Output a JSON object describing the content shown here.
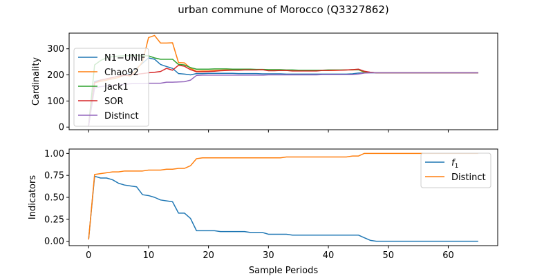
{
  "chart_data": {
    "title": "urban commune of Morocco (Q3327862)",
    "xlabel": "Sample Periods",
    "xlim": [
      -3.25,
      68.25
    ],
    "xticks": [
      0,
      10,
      20,
      30,
      40,
      50,
      60
    ],
    "panels": [
      {
        "type": "line",
        "ylabel": "Cardinality",
        "ylim": [
          -10,
          360
        ],
        "yticks": [
          0,
          100,
          200,
          300
        ],
        "legend_position": "center-left",
        "series": [
          {
            "name": "N1−UNIF",
            "color": "#1f77b4",
            "x": [
              0,
              1,
              2,
              3,
              4,
              5,
              6,
              7,
              8,
              9,
              10,
              11,
              12,
              13,
              14,
              15,
              16,
              17,
              18,
              19,
              20,
              21,
              22,
              23,
              24,
              25,
              26,
              27,
              28,
              29,
              30,
              31,
              32,
              33,
              34,
              35,
              36,
              37,
              38,
              39,
              40,
              41,
              42,
              43,
              44,
              45,
              46,
              47,
              48,
              49,
              50,
              51,
              52,
              53,
              54,
              55,
              56,
              57,
              58,
              59,
              60,
              61,
              62,
              63,
              64,
              65
            ],
            "y": [
              5,
              175,
              180,
              185,
              190,
              195,
              200,
              210,
              225,
              245,
              265,
              260,
              240,
              232,
              225,
              205,
              203,
              200,
              205,
              205,
              206,
              206,
              206,
              206,
              206,
              205,
              205,
              205,
              205,
              204,
              204,
              204,
              204,
              203,
              203,
              203,
              203,
              203,
              203,
              203,
              203,
              203,
              203,
              203,
              204,
              207,
              208,
              208,
              208,
              208,
              208,
              208,
              208,
              208,
              208,
              208,
              208,
              208,
              208,
              208,
              208,
              208,
              208,
              208,
              208,
              208
            ]
          },
          {
            "name": "Chao92",
            "color": "#ff7f0e",
            "x": [
              0,
              1,
              2,
              3,
              4,
              5,
              6,
              7,
              8,
              9,
              10,
              11,
              12,
              13,
              14,
              15,
              16,
              17,
              18,
              19,
              20,
              21,
              22,
              23,
              24,
              25,
              26,
              27,
              28,
              29,
              30,
              31,
              32,
              33,
              34,
              35,
              36,
              37,
              38,
              39,
              40,
              41,
              42,
              43,
              44,
              45,
              46,
              47,
              48,
              49,
              50,
              51,
              52,
              53,
              54,
              55,
              56,
              57,
              58,
              59,
              60,
              61,
              62,
              63,
              64,
              65
            ],
            "y": [
              5,
              170,
              175,
              180,
              185,
              190,
              200,
              195,
              220,
              250,
              343,
              351,
              322,
              322,
              323,
              247,
              246,
              225,
              214,
              215,
              215,
              217,
              218,
              219,
              219,
              220,
              220,
              220,
              220,
              220,
              218,
              217,
              217,
              217,
              216,
              216,
              216,
              216,
              216,
              217,
              217,
              217,
              218,
              219,
              219,
              220,
              210,
              210,
              208,
              208,
              208,
              208,
              208,
              208,
              208,
              208,
              208,
              208,
              208,
              208,
              208,
              208,
              208,
              208,
              208,
              208
            ]
          },
          {
            "name": "Jack1",
            "color": "#2ca02c",
            "x": [
              0,
              1,
              2,
              3,
              4,
              5,
              6,
              7,
              8,
              9,
              10,
              11,
              12,
              13,
              14,
              15,
              16,
              17,
              18,
              19,
              20,
              21,
              22,
              23,
              24,
              25,
              26,
              27,
              28,
              29,
              30,
              31,
              32,
              33,
              34,
              35,
              36,
              37,
              38,
              39,
              40,
              41,
              42,
              43,
              44,
              45,
              46,
              47,
              48,
              49,
              50,
              51,
              52,
              53,
              54,
              55,
              56,
              57,
              58,
              59,
              60,
              61,
              62,
              63,
              64,
              65
            ],
            "y": [
              5,
              238,
              255,
              265,
              270,
              272,
              273,
              274,
              274,
              273,
              273,
              265,
              260,
              260,
              260,
              240,
              238,
              228,
              222,
              222,
              222,
              223,
              223,
              223,
              222,
              222,
              222,
              222,
              221,
              221,
              220,
              220,
              220,
              219,
              219,
              218,
              218,
              218,
              218,
              218,
              219,
              219,
              219,
              219,
              220,
              220,
              212,
              210,
              208,
              208,
              208,
              208,
              208,
              208,
              208,
              208,
              208,
              208,
              208,
              208,
              208,
              208,
              208,
              208,
              208,
              208
            ]
          },
          {
            "name": "SOR",
            "color": "#d62728",
            "x": [
              0,
              1,
              2,
              3,
              4,
              5,
              6,
              7,
              8,
              9,
              10,
              11,
              12,
              13,
              14,
              15,
              16,
              17,
              18,
              19,
              20,
              21,
              22,
              23,
              24,
              25,
              26,
              27,
              28,
              29,
              30,
              31,
              32,
              33,
              34,
              35,
              36,
              37,
              38,
              39,
              40,
              41,
              42,
              43,
              44,
              45,
              46,
              47,
              48,
              49,
              50,
              51,
              52,
              53,
              54,
              55,
              56,
              57,
              58,
              59,
              60,
              61,
              62,
              63,
              64,
              65
            ],
            "y": [
              5,
              170,
              180,
              185,
              190,
              195,
              198,
              200,
              202,
              205,
              208,
              210,
              213,
              225,
              218,
              237,
              233,
              220,
              212,
              212,
              213,
              214,
              216,
              217,
              218,
              218,
              219,
              219,
              219,
              220,
              216,
              216,
              217,
              217,
              215,
              215,
              215,
              215,
              215,
              217,
              217,
              218,
              218,
              219,
              220,
              222,
              214,
              210,
              208,
              208,
              208,
              208,
              208,
              208,
              208,
              208,
              208,
              208,
              208,
              208,
              208,
              208,
              208,
              208,
              208,
              208
            ]
          },
          {
            "name": "Distinct",
            "color": "#9467bd",
            "x": [
              0,
              1,
              2,
              3,
              4,
              5,
              6,
              7,
              8,
              9,
              10,
              11,
              12,
              13,
              14,
              15,
              16,
              17,
              18,
              19,
              20,
              21,
              22,
              23,
              24,
              25,
              26,
              27,
              28,
              29,
              30,
              31,
              32,
              33,
              34,
              35,
              36,
              37,
              38,
              39,
              40,
              41,
              42,
              43,
              44,
              45,
              46,
              47,
              48,
              49,
              50,
              51,
              52,
              53,
              54,
              55,
              56,
              57,
              58,
              59,
              60,
              61,
              62,
              63,
              64,
              65
            ],
            "y": [
              5,
              150,
              155,
              158,
              160,
              162,
              164,
              166,
              167,
              167,
              168,
              168,
              168,
              172,
              172,
              173,
              174,
              180,
              198,
              199,
              199,
              199,
              199,
              199,
              199,
              199,
              199,
              199,
              199,
              199,
              200,
              200,
              200,
              200,
              200,
              200,
              200,
              200,
              200,
              201,
              201,
              201,
              201,
              201,
              201,
              203,
              207,
              208,
              208,
              208,
              208,
              208,
              208,
              208,
              208,
              208,
              208,
              208,
              208,
              208,
              208,
              208,
              208,
              208,
              208,
              208
            ]
          }
        ]
      },
      {
        "type": "line",
        "ylabel": "Indicators",
        "ylim": [
          -0.05,
          1.05
        ],
        "yticks": [
          0.0,
          0.25,
          0.5,
          0.75,
          1.0
        ],
        "ytick_labels": [
          "0.00",
          "0.25",
          "0.50",
          "0.75",
          "1.00"
        ],
        "legend_position": "upper-right",
        "series": [
          {
            "name": "f1",
            "color": "#1f77b4",
            "x": [
              0,
              1,
              2,
              3,
              4,
              5,
              6,
              7,
              8,
              9,
              10,
              11,
              12,
              13,
              14,
              15,
              16,
              17,
              18,
              19,
              20,
              21,
              22,
              23,
              24,
              25,
              26,
              27,
              28,
              29,
              30,
              31,
              32,
              33,
              34,
              35,
              36,
              37,
              38,
              39,
              40,
              41,
              42,
              43,
              44,
              45,
              46,
              47,
              48,
              49,
              50,
              51,
              52,
              53,
              54,
              55,
              56,
              57,
              58,
              59,
              60,
              61,
              62,
              63,
              64,
              65
            ],
            "y": [
              0.02,
              0.74,
              0.72,
              0.72,
              0.7,
              0.66,
              0.64,
              0.63,
              0.62,
              0.53,
              0.52,
              0.5,
              0.47,
              0.46,
              0.45,
              0.32,
              0.32,
              0.26,
              0.12,
              0.12,
              0.12,
              0.12,
              0.11,
              0.11,
              0.11,
              0.11,
              0.11,
              0.1,
              0.1,
              0.1,
              0.08,
              0.08,
              0.08,
              0.08,
              0.07,
              0.07,
              0.07,
              0.07,
              0.07,
              0.07,
              0.07,
              0.07,
              0.07,
              0.07,
              0.07,
              0.07,
              0.04,
              0.01,
              0.0,
              0.0,
              0.0,
              0.0,
              0.0,
              0.0,
              0.0,
              0.0,
              0.0,
              0.0,
              0.0,
              0.0,
              0.0,
              0.0,
              0.0,
              0.0,
              0.0,
              0.0
            ]
          },
          {
            "name": "Distinct",
            "color": "#ff7f0e",
            "x": [
              0,
              1,
              2,
              3,
              4,
              5,
              6,
              7,
              8,
              9,
              10,
              11,
              12,
              13,
              14,
              15,
              16,
              17,
              18,
              19,
              20,
              21,
              22,
              23,
              24,
              25,
              26,
              27,
              28,
              29,
              30,
              31,
              32,
              33,
              34,
              35,
              36,
              37,
              38,
              39,
              40,
              41,
              42,
              43,
              44,
              45,
              46,
              47,
              48,
              49,
              50,
              51,
              52,
              53,
              54,
              55,
              56,
              57,
              58,
              59,
              60,
              61,
              62,
              63,
              64,
              65
            ],
            "y": [
              0.02,
              0.76,
              0.77,
              0.78,
              0.79,
              0.79,
              0.8,
              0.8,
              0.8,
              0.8,
              0.81,
              0.81,
              0.81,
              0.82,
              0.82,
              0.83,
              0.83,
              0.86,
              0.94,
              0.95,
              0.95,
              0.95,
              0.95,
              0.95,
              0.95,
              0.95,
              0.95,
              0.95,
              0.95,
              0.95,
              0.95,
              0.95,
              0.95,
              0.96,
              0.96,
              0.96,
              0.96,
              0.96,
              0.96,
              0.96,
              0.96,
              0.96,
              0.96,
              0.96,
              0.97,
              0.97,
              1.0,
              1.0,
              1.0,
              1.0,
              1.0,
              1.0,
              1.0,
              1.0,
              1.0,
              1.0,
              1.0,
              1.0,
              1.0,
              1.0,
              1.0,
              1.0,
              1.0,
              1.0,
              1.0,
              1.0
            ]
          }
        ]
      }
    ]
  }
}
